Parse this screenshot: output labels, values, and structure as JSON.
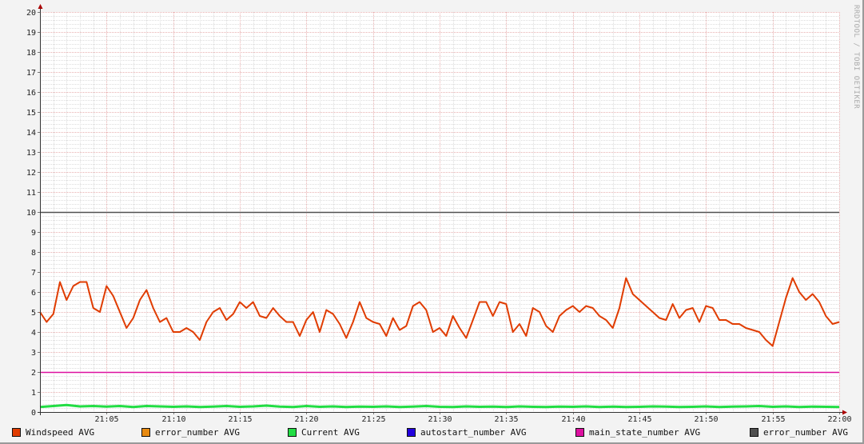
{
  "watermark": "RRDTOOL / TOBI OETIKER",
  "chart_data": {
    "type": "line",
    "title": "",
    "xlabel": "",
    "ylabel": "",
    "xlim": [
      "21:00",
      "22:00"
    ],
    "ylim": [
      0,
      20
    ],
    "x_ticks": [
      "21:05",
      "21:10",
      "21:15",
      "21:20",
      "21:25",
      "21:30",
      "21:35",
      "21:40",
      "21:45",
      "21:50",
      "21:55",
      "22:00"
    ],
    "y_ticks": [
      "0",
      "1",
      "2",
      "3",
      "4",
      "5",
      "6",
      "7",
      "8",
      "9",
      "10",
      "11",
      "12",
      "13",
      "14",
      "15",
      "16",
      "17",
      "18",
      "19",
      "20"
    ],
    "grid": true,
    "legend_position": "bottom",
    "series": [
      {
        "name": "Windspeed AVG",
        "color": "#e03c00",
        "start": "21:00:00",
        "step_seconds": 30,
        "values": [
          5.0,
          4.5,
          4.9,
          6.5,
          5.6,
          6.3,
          6.5,
          6.5,
          5.2,
          5.0,
          6.3,
          5.8,
          5.0,
          4.2,
          4.7,
          5.6,
          6.1,
          5.2,
          4.5,
          4.7,
          4.0,
          4.0,
          4.2,
          4.0,
          3.6,
          4.5,
          5.0,
          5.2,
          4.6,
          4.9,
          5.5,
          5.2,
          5.5,
          4.8,
          4.7,
          5.2,
          4.8,
          4.5,
          4.5,
          3.8,
          4.6,
          5.0,
          4.0,
          5.1,
          4.9,
          4.4,
          3.7,
          4.5,
          5.5,
          4.7,
          4.5,
          4.4,
          3.8,
          4.7,
          4.1,
          4.3,
          5.3,
          5.5,
          5.1,
          4.0,
          4.2,
          3.8,
          4.8,
          4.2,
          3.7,
          4.6,
          5.5,
          5.5,
          4.8,
          5.5,
          5.4,
          4.0,
          4.4,
          3.8,
          5.2,
          5.0,
          4.3,
          4.0,
          4.8,
          5.1,
          5.3,
          5.0,
          5.3,
          5.2,
          4.8,
          4.6,
          4.2,
          5.2,
          6.7,
          5.9,
          5.6,
          5.3,
          5.0,
          4.7,
          4.6,
          5.4,
          4.7,
          5.1,
          5.2,
          4.5,
          5.3,
          5.2,
          4.6,
          4.6,
          4.4,
          4.4,
          4.2,
          4.1,
          4.0,
          3.6,
          3.3,
          4.5,
          5.7,
          6.7,
          6.0,
          5.6,
          5.9,
          5.5,
          4.8,
          4.4,
          4.5
        ]
      },
      {
        "name": "error_number AVG",
        "color": "#e88a10",
        "constant": 0
      },
      {
        "name": "Current AVG",
        "color": "#22dd44",
        "start": "21:00:00",
        "step_seconds": 60,
        "values": [
          0.25,
          0.3,
          0.35,
          0.28,
          0.3,
          0.27,
          0.3,
          0.25,
          0.3,
          0.28,
          0.26,
          0.28,
          0.25,
          0.27,
          0.3,
          0.26,
          0.28,
          0.32,
          0.27,
          0.25,
          0.3,
          0.26,
          0.28,
          0.25,
          0.27,
          0.26,
          0.28,
          0.25,
          0.27,
          0.3,
          0.26,
          0.25,
          0.28,
          0.26,
          0.27,
          0.25,
          0.28,
          0.26,
          0.25,
          0.27,
          0.26,
          0.28,
          0.25,
          0.27,
          0.25,
          0.26,
          0.28,
          0.27,
          0.25,
          0.26,
          0.28,
          0.25,
          0.27,
          0.28,
          0.3,
          0.26,
          0.28,
          0.25,
          0.27,
          0.26,
          0.25
        ]
      },
      {
        "name": "autostart_number AVG",
        "color": "#2200dd",
        "constant": 0
      },
      {
        "name": "main_state_number AVG",
        "color": "#dd10a0",
        "constant": 2
      },
      {
        "name": "error_number AVG",
        "color": "#505050",
        "constant": 10
      }
    ]
  }
}
